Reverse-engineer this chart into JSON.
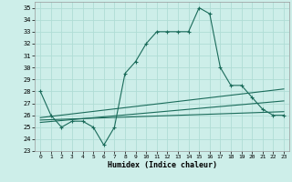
{
  "xlabel": "Humidex (Indice chaleur)",
  "xlim": [
    -0.5,
    23.5
  ],
  "ylim": [
    23,
    35.5
  ],
  "yticks": [
    23,
    24,
    25,
    26,
    27,
    28,
    29,
    30,
    31,
    32,
    33,
    34,
    35
  ],
  "xticks": [
    0,
    1,
    2,
    3,
    4,
    5,
    6,
    7,
    8,
    9,
    10,
    11,
    12,
    13,
    14,
    15,
    16,
    17,
    18,
    19,
    20,
    21,
    22,
    23
  ],
  "bg_color": "#cdeee9",
  "grid_color": "#b0ddd5",
  "line_color": "#1a6b5a",
  "line1_x": [
    0,
    1,
    2,
    3,
    4,
    5,
    6,
    7,
    8,
    9,
    10,
    11,
    12,
    13,
    14,
    15,
    16,
    17,
    18,
    19,
    20,
    21,
    22,
    23
  ],
  "line1_y": [
    28,
    26,
    25,
    25.5,
    25.5,
    25,
    23.5,
    25,
    29.5,
    30.5,
    32,
    33,
    33,
    33,
    33,
    35,
    34.5,
    30,
    28.5,
    28.5,
    27.5,
    26.5,
    26,
    26
  ],
  "line2_x": [
    0,
    23
  ],
  "line2_y": [
    25.8,
    28.2
  ],
  "line3_x": [
    0,
    23
  ],
  "line3_y": [
    25.4,
    27.2
  ],
  "line4_x": [
    0,
    23
  ],
  "line4_y": [
    25.6,
    26.3
  ]
}
